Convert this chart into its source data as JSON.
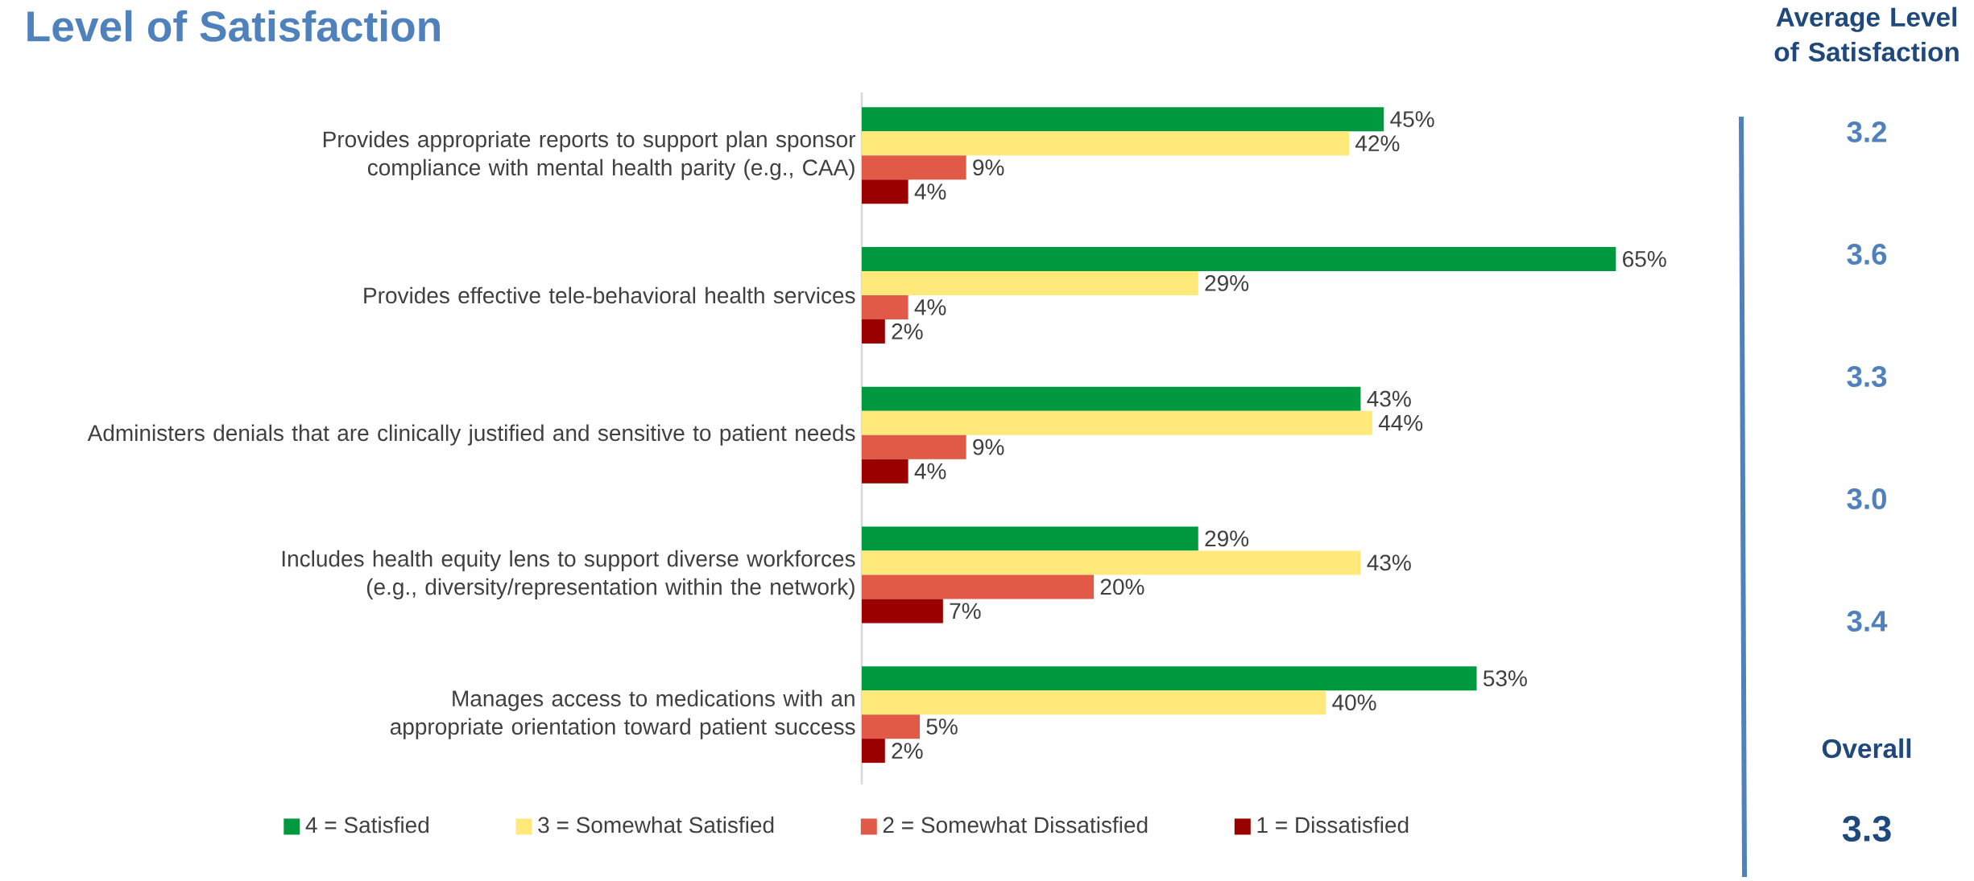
{
  "chart_data": {
    "type": "bar",
    "orientation": "horizontal",
    "title": "Level of Satisfaction",
    "categories": [
      "Provides appropriate reports to support plan sponsor compliance with mental health parity (e.g., CAA)",
      "Provides effective tele-behavioral health services",
      "Administers denials that are clinically justified and sensitive to patient needs",
      "Includes health equity lens to support diverse workforces (e.g., diversity/representation within the network)",
      "Manages access to medications with an appropriate orientation toward patient success"
    ],
    "series": [
      {
        "name": "4 = Satisfied",
        "color": "#00993f",
        "values": [
          45,
          65,
          43,
          29,
          53
        ],
        "value_labels": [
          "45%",
          "65%",
          "43%",
          "29%",
          "53%"
        ]
      },
      {
        "name": "3 = Somewhat Satisfied",
        "color": "#ffe97a",
        "values": [
          42,
          29,
          44,
          43,
          40
        ],
        "value_labels": [
          "42%",
          "29%",
          "44%",
          "43%",
          "40%"
        ]
      },
      {
        "name": "2 = Somewhat Dissatisfied",
        "color": "#e05a47",
        "values": [
          9,
          4,
          9,
          20,
          5
        ],
        "value_labels": [
          "9%",
          "4%",
          "9%",
          "20%",
          "5%"
        ]
      },
      {
        "name": "1 = Dissatisfied",
        "color": "#9b0000",
        "values": [
          4,
          2,
          4,
          7,
          2
        ],
        "value_labels": [
          "4%",
          "2%",
          "4%",
          "7%",
          "2%"
        ]
      }
    ],
    "legend": "bottom",
    "annotations": [
      "Average Level of Satisfaction",
      "3.2",
      "3.6",
      "3.3",
      "3.0",
      "3.4",
      "Overall",
      "3.3"
    ]
  }
}
